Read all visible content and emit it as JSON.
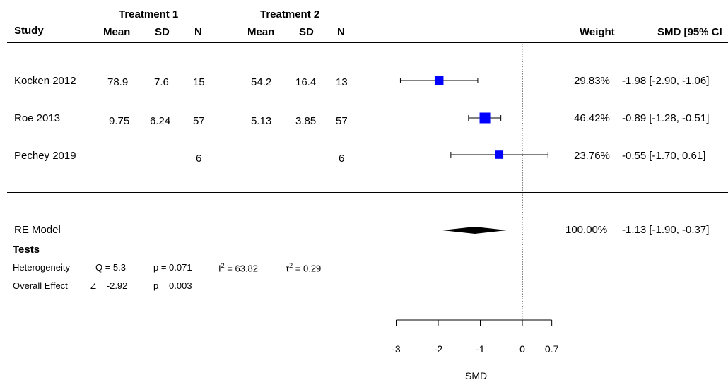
{
  "headers": {
    "group1": "Treatment 1",
    "group2": "Treatment 2",
    "study": "Study",
    "mean": "Mean",
    "sd": "SD",
    "n": "N",
    "weight": "Weight",
    "effect": "SMD [95% CI"
  },
  "rows": [
    {
      "study": "Kocken 2012",
      "m1": "78.9",
      "sd1": "7.6",
      "n1": "15",
      "m2": "54.2",
      "sd2": "16.4",
      "n2": "13",
      "weight": "29.83%",
      "ci": "-1.98 [-2.90, -1.06]"
    },
    {
      "study": "Roe 2013",
      "m1": "9.75",
      "sd1": "6.24",
      "n1": "57",
      "m2": "5.13",
      "sd2": "3.85",
      "n2": "57",
      "weight": "46.42%",
      "ci": "-0.89 [-1.28, -0.51]"
    },
    {
      "study": "Pechey 2019",
      "m1": "",
      "sd1": "",
      "n1": "6",
      "m2": "",
      "sd2": "",
      "n2": "6",
      "weight": "23.76%",
      "ci": "-0.55 [-1.70,  0.61]"
    }
  ],
  "summary": {
    "label": "RE Model",
    "weight": "100.00%",
    "ci": "-1.13 [-1.90, -0.37]"
  },
  "tests": {
    "title": "Tests",
    "heterogeneity_label": "Heterogeneity",
    "q": "Q = 5.3",
    "q_p": "p = 0.071",
    "i2_sym": "I",
    "i2_val": " = 63.82",
    "tau2_sym": "τ",
    "tau2_val": " = 0.29",
    "superscript": "2",
    "overall_label": "Overall Effect",
    "z": "Z = -2.92",
    "z_p": "p = 0.003"
  },
  "chart_data": {
    "type": "forest",
    "xlabel": "SMD",
    "xlim": [
      -3,
      0.7
    ],
    "ticks": [
      -3,
      -2,
      -1,
      0,
      0.7
    ],
    "tick_labels": [
      "-3",
      "-2",
      "-1",
      "0",
      "0.7"
    ],
    "reference_line": 0,
    "series": [
      {
        "name": "Kocken 2012",
        "estimate": -1.98,
        "lower": -2.9,
        "upper": -1.06,
        "weight": 29.83
      },
      {
        "name": "Roe 2013",
        "estimate": -0.89,
        "lower": -1.28,
        "upper": -0.51,
        "weight": 46.42
      },
      {
        "name": "Pechey 2019",
        "estimate": -0.55,
        "lower": -1.7,
        "upper": 0.61,
        "weight": 23.76
      }
    ],
    "pooled": {
      "name": "RE Model",
      "estimate": -1.13,
      "lower": -1.9,
      "upper": -0.37
    },
    "colors": {
      "marker": "#0000ff",
      "line": "#000000"
    }
  }
}
